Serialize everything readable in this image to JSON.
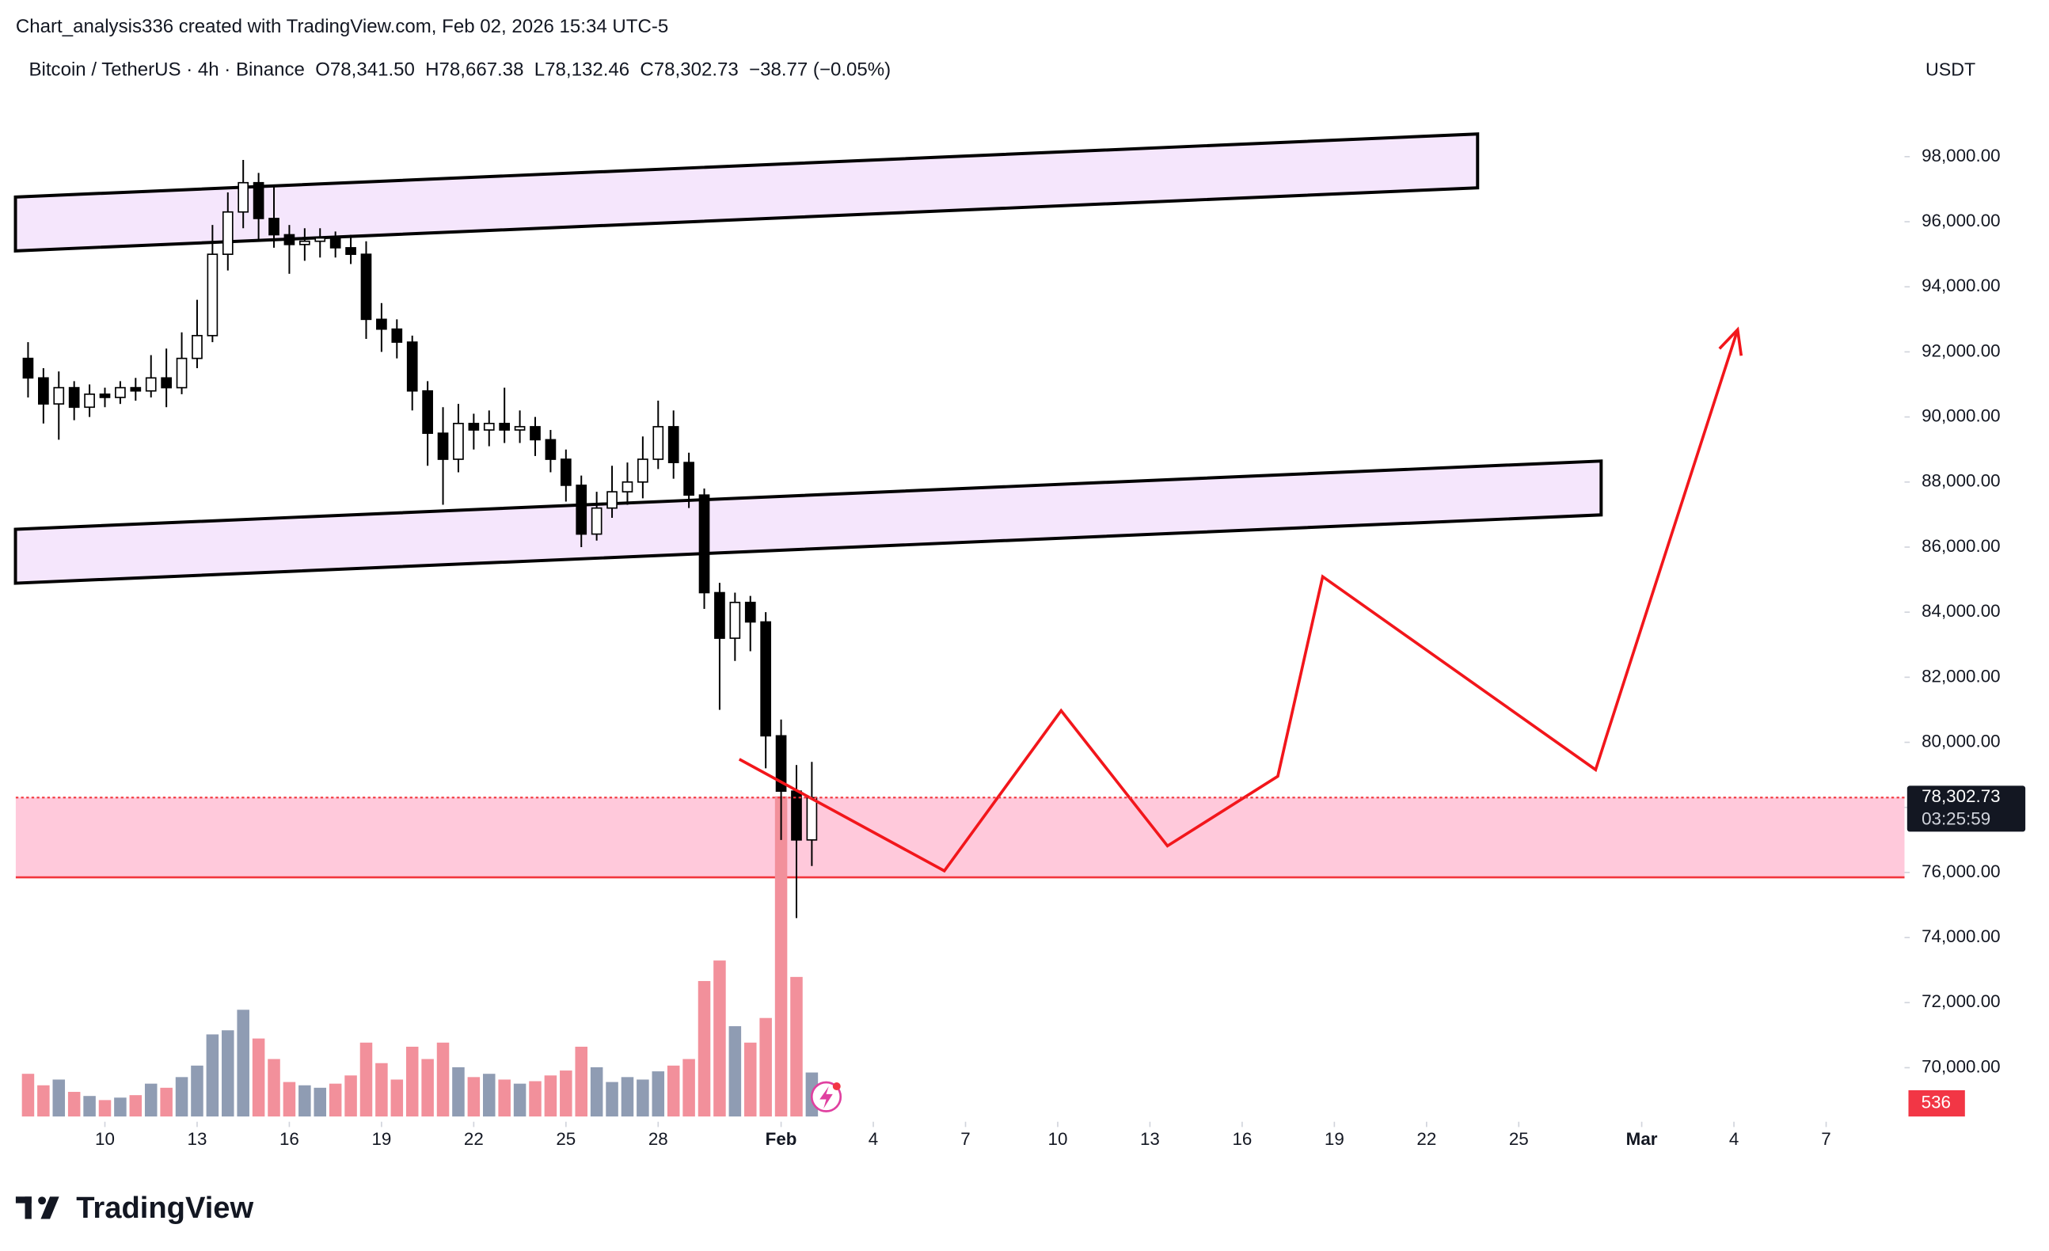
{
  "chart_data": {
    "type": "candlestick",
    "header": "Chart_analysis336 created with TradingView.com, Feb 02, 2026 15:34 UTC-5",
    "title": "Bitcoin / TetherUS · 4h · Binance",
    "ohlc_labels": [
      "O78,341.50",
      "H78,667.38",
      "L78,132.46",
      "C78,302.73",
      "−38.77 (−0.05%)"
    ],
    "currency": "USDT",
    "brand": "TradingView",
    "x": [
      7.5,
      8,
      8.5,
      9,
      9.5,
      10,
      10.5,
      11,
      11.5,
      12,
      12.5,
      13,
      13.5,
      14,
      14.5,
      15,
      15.5,
      16,
      16.5,
      17,
      17.5,
      18,
      18.5,
      19,
      19.5,
      20,
      20.5,
      21,
      21.5,
      22,
      22.5,
      23,
      23.5,
      24,
      24.5,
      25,
      25.5,
      26,
      26.5,
      27,
      27.5,
      28,
      28.5,
      29,
      29.5,
      30,
      30.5,
      31,
      31.5,
      32,
      32.5,
      33
    ],
    "open": [
      91800,
      91200,
      90400,
      90900,
      90300,
      90700,
      90600,
      90900,
      90800,
      91200,
      90900,
      91800,
      92500,
      95000,
      96300,
      97200,
      96100,
      95600,
      95300,
      95400,
      95500,
      95200,
      95000,
      93000,
      92700,
      92300,
      90800,
      89500,
      88700,
      89800,
      89600,
      89800,
      89600,
      89700,
      89300,
      88700,
      87900,
      86400,
      87200,
      87700,
      88000,
      88700,
      89700,
      88600,
      87600,
      84600,
      83200,
      84300,
      83700,
      80200,
      78500,
      77000
    ],
    "high": [
      92300,
      91500,
      91400,
      91100,
      91000,
      90900,
      91100,
      91200,
      91900,
      92100,
      92600,
      93600,
      95900,
      96900,
      97900,
      97500,
      97100,
      95900,
      95800,
      95800,
      95700,
      95600,
      95400,
      93500,
      93000,
      92500,
      91100,
      90300,
      90400,
      90100,
      90200,
      90900,
      90200,
      90000,
      89600,
      89000,
      88200,
      87700,
      88500,
      88600,
      89400,
      90500,
      90200,
      88900,
      87800,
      84900,
      84600,
      84500,
      84000,
      80700,
      79300,
      79400
    ],
    "low": [
      90600,
      89800,
      89300,
      89900,
      90000,
      90300,
      90400,
      90500,
      90600,
      90300,
      90700,
      91500,
      92300,
      94500,
      95800,
      95400,
      95200,
      94400,
      94800,
      94900,
      94900,
      94700,
      92400,
      92000,
      91800,
      90200,
      88500,
      87300,
      88300,
      89000,
      89100,
      89200,
      89200,
      88800,
      88300,
      87400,
      86000,
      86200,
      86900,
      87300,
      87500,
      88400,
      88100,
      87200,
      84100,
      81000,
      82500,
      82800,
      79200,
      77000,
      74600,
      76200
    ],
    "close": [
      91200,
      90400,
      90900,
      90300,
      90700,
      90600,
      90900,
      90800,
      91200,
      90900,
      91800,
      92500,
      95000,
      96300,
      97200,
      96100,
      95600,
      95300,
      95400,
      95500,
      95200,
      95000,
      93000,
      92700,
      92300,
      90800,
      89500,
      88700,
      89800,
      89600,
      89800,
      89600,
      89700,
      89300,
      88700,
      87900,
      86400,
      87200,
      87700,
      88000,
      88700,
      89700,
      88600,
      87600,
      84600,
      83200,
      84300,
      83700,
      80200,
      78500,
      77000,
      78300
    ],
    "volume": [
      520,
      380,
      450,
      300,
      250,
      200,
      230,
      260,
      400,
      350,
      480,
      620,
      1000,
      1050,
      1300,
      950,
      700,
      420,
      380,
      350,
      400,
      500,
      900,
      650,
      450,
      850,
      700,
      900,
      600,
      480,
      520,
      450,
      400,
      430,
      500,
      560,
      850,
      600,
      420,
      480,
      450,
      550,
      620,
      700,
      1650,
      1900,
      1100,
      900,
      1200,
      3900,
      1700,
      536
    ],
    "volume_ylim": [
      0,
      4000
    ],
    "volume_label": "536",
    "colors": {
      "up_body": "#ffffff",
      "down_body": "#000000",
      "wick": "#000000",
      "volume_up": "#8f9cb3",
      "volume_down": "#f2909b"
    },
    "xlim": [
      7.1,
      68.55
    ],
    "xticks": [
      {
        "value": 10,
        "label": "10"
      },
      {
        "value": 13,
        "label": "13"
      },
      {
        "value": 16,
        "label": "16"
      },
      {
        "value": 19,
        "label": "19"
      },
      {
        "value": 22,
        "label": "22"
      },
      {
        "value": 25,
        "label": "25"
      },
      {
        "value": 28,
        "label": "28"
      },
      {
        "value": 32,
        "label": "Feb"
      },
      {
        "value": 35,
        "label": "4"
      },
      {
        "value": 38,
        "label": "7"
      },
      {
        "value": 41,
        "label": "10"
      },
      {
        "value": 44,
        "label": "13"
      },
      {
        "value": 47,
        "label": "16"
      },
      {
        "value": 50,
        "label": "19"
      },
      {
        "value": 53,
        "label": "22"
      },
      {
        "value": 56,
        "label": "25"
      },
      {
        "value": 60,
        "label": "Mar"
      },
      {
        "value": 63,
        "label": "4"
      },
      {
        "value": 66,
        "label": "7"
      }
    ],
    "ylim": [
      68500,
      101200
    ],
    "yticks": [
      {
        "value": 70000,
        "label": "70,000.00"
      },
      {
        "value": 72000,
        "label": "72,000.00"
      },
      {
        "value": 74000,
        "label": "74,000.00"
      },
      {
        "value": 76000,
        "label": "76,000.00"
      },
      {
        "value": 78000,
        "label": "78,000.00"
      },
      {
        "value": 80000,
        "label": "80,000.00"
      },
      {
        "value": 82000,
        "label": "82,000.00"
      },
      {
        "value": 84000,
        "label": "84,000.00"
      },
      {
        "value": 86000,
        "label": "86,000.00"
      },
      {
        "value": 88000,
        "label": "88,000.00"
      },
      {
        "value": 90000,
        "label": "90,000.00"
      },
      {
        "value": 92000,
        "label": "92,000.00"
      },
      {
        "value": 94000,
        "label": "94,000.00"
      },
      {
        "value": 96000,
        "label": "96,000.00"
      },
      {
        "value": 98000,
        "label": "98,000.00"
      }
    ],
    "last_price": 78302.73,
    "last_price_label": "78,302.73",
    "countdown": "03:25:59",
    "channels": [
      {
        "x": [
          7.09,
          54.66,
          54.66,
          7.09
        ],
        "y": [
          96759,
          98697,
          97042,
          95104
        ],
        "color": "#f5e6fc"
      },
      {
        "x": [
          7.09,
          58.68,
          58.68,
          7.09
        ],
        "y": [
          86546,
          88645,
          86990,
          84890
        ],
        "color": "#f5e6fc"
      }
    ],
    "zone": {
      "top": 78302.73,
      "bottom": 75850,
      "color": "#ffc9db",
      "line_color": "#f2363d"
    },
    "projection": {
      "x": [
        30.64,
        37.31,
        41.11,
        44.57,
        48.16,
        49.62,
        58.5,
        63.12
      ],
      "y": [
        79481,
        76049,
        80974,
        76816,
        78956,
        85092,
        79158,
        92682
      ],
      "color": "#f2161b"
    }
  }
}
